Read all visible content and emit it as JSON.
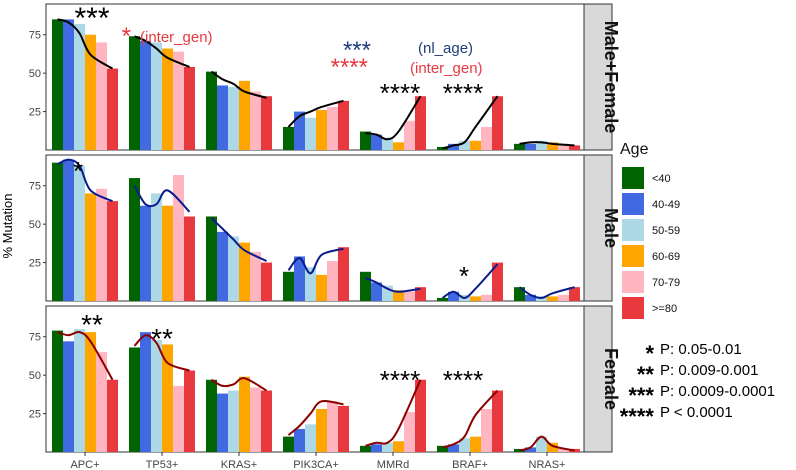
{
  "chart_data": {
    "type": "bar",
    "ylabel": "% Mutation",
    "categories": [
      "APC+",
      "TP53+",
      "KRAS+",
      "PIK3CA+",
      "MMRd",
      "BRAF+",
      "NRAS+"
    ],
    "y_ticks": [
      25,
      50,
      75
    ],
    "ylim": [
      0,
      95
    ],
    "legend": {
      "title": "Age",
      "position": "right",
      "items": [
        {
          "label": "<40",
          "color": "#006400"
        },
        {
          "label": "40-49",
          "color": "#4169E1"
        },
        {
          "label": "50-59",
          "color": "#ADD8E6"
        },
        {
          "label": "60-69",
          "color": "#FFA500"
        },
        {
          "label": "70-79",
          "color": "#FFB6C1"
        },
        {
          "label": ">=80",
          "color": "#E8393F"
        }
      ]
    },
    "panels": [
      {
        "strip": "Male+Female",
        "line_color": "#000000",
        "series_by_age": {
          "<40": [
            85,
            74,
            51,
            15,
            12,
            2,
            4
          ],
          "40-49": [
            85,
            71,
            42,
            25,
            10,
            4,
            4
          ],
          "50-59": [
            82,
            70,
            41,
            21,
            8,
            6,
            6
          ],
          "60-69": [
            75,
            66,
            45,
            26,
            5,
            6,
            5
          ],
          "70-79": [
            70,
            64,
            38,
            28,
            19,
            15,
            4
          ],
          ">=80": [
            53,
            54,
            35,
            32,
            35,
            35,
            3
          ]
        },
        "trend": [
          [
            85,
            83,
            76,
            62,
            53
          ],
          [
            74,
            71,
            66,
            60,
            54
          ],
          [
            51,
            46,
            43,
            38,
            34
          ],
          [
            15,
            22,
            25,
            28,
            32
          ],
          [
            11,
            10,
            7,
            12,
            35
          ],
          [
            1,
            3,
            5,
            15,
            35
          ],
          [
            4,
            5,
            5,
            4,
            3
          ]
        ],
        "annotations": [
          {
            "text": "***",
            "color": "#000000"
          },
          {
            "text": "*",
            "color": "#E8393F"
          },
          {
            "text": "(inter_gen)",
            "color": "#E8393F"
          },
          {
            "text": "***",
            "color": "#1F3D7A"
          },
          {
            "text": "(nl_age)",
            "color": "#1F3D7A"
          },
          {
            "text": "****",
            "color": "#E8393F"
          },
          {
            "text": "(inter_gen)",
            "color": "#E8393F"
          },
          {
            "text": "****",
            "color": "#000000"
          },
          {
            "text": "****",
            "color": "#000000"
          }
        ]
      },
      {
        "strip": "Male",
        "line_color": "#0A1C8C",
        "series_by_age": {
          "<40": [
            90,
            80,
            55,
            19,
            19,
            2,
            9
          ],
          "40-49": [
            92,
            62,
            45,
            29,
            12,
            6,
            4
          ],
          "50-59": [
            88,
            70,
            42,
            22,
            10,
            4,
            3
          ],
          "60-69": [
            70,
            62,
            38,
            17,
            7,
            3,
            3
          ],
          "70-79": [
            73,
            82,
            32,
            26,
            6,
            4,
            4
          ],
          ">=80": [
            65,
            55,
            25,
            35,
            9,
            25,
            9
          ]
        },
        "trend": [
          [
            89,
            92,
            88,
            72,
            65
          ],
          [
            75,
            63,
            63,
            72,
            58
          ],
          [
            54,
            47,
            40,
            33,
            26
          ],
          [
            20,
            28,
            18,
            30,
            34
          ],
          [
            15,
            12,
            8,
            6,
            8
          ],
          [
            2,
            6,
            2,
            8,
            24
          ],
          [
            9,
            4,
            2,
            5,
            9
          ]
        ],
        "annotations": [
          {
            "text": "*",
            "color": "#000000"
          },
          {
            "text": "*",
            "color": "#000000"
          }
        ]
      },
      {
        "strip": "Female",
        "line_color": "#8B0000",
        "series_by_age": {
          "<40": [
            79,
            68,
            47,
            10,
            4,
            4,
            2
          ],
          "40-49": [
            72,
            78,
            38,
            15,
            5,
            5,
            3
          ],
          "50-59": [
            80,
            73,
            40,
            18,
            6,
            9,
            10
          ],
          "60-69": [
            78,
            70,
            49,
            28,
            7,
            10,
            6
          ],
          "70-79": [
            65,
            43,
            42,
            33,
            26,
            28,
            2
          ],
          ">=80": [
            47,
            53,
            40,
            30,
            47,
            40,
            2
          ]
        },
        "trend": [
          [
            78,
            76,
            78,
            72,
            47
          ],
          [
            69,
            76,
            71,
            58,
            53
          ],
          [
            47,
            43,
            44,
            48,
            40
          ],
          [
            11,
            17,
            25,
            33,
            31
          ],
          [
            4,
            6,
            6,
            15,
            47
          ],
          [
            3,
            5,
            10,
            24,
            40
          ],
          [
            1,
            3,
            10,
            4,
            1
          ]
        ],
        "annotations": [
          {
            "text": "**",
            "color": "#000000"
          },
          {
            "text": "**",
            "color": "#000000"
          },
          {
            "text": "****",
            "color": "#000000"
          },
          {
            "text": "****",
            "color": "#000000"
          }
        ]
      }
    ],
    "significance_key": [
      {
        "stars": "*",
        "label": "P: 0.05-0.01"
      },
      {
        "stars": "**",
        "label": "P: 0.009-0.001"
      },
      {
        "stars": "***",
        "label": "P: 0.0009-0.0001"
      },
      {
        "stars": "****",
        "label": "P < 0.0001"
      }
    ]
  }
}
